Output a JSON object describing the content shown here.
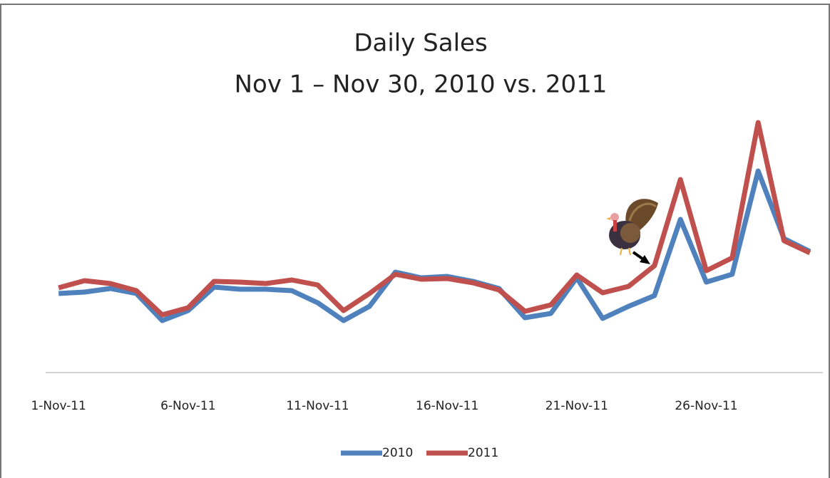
{
  "chart_data": {
    "type": "line",
    "title": "Daily Sales",
    "subtitle": "Nov 1 – Nov 30, 2010 vs. 2011",
    "categories": [
      "1-Nov-11",
      null,
      null,
      null,
      null,
      "6-Nov-11",
      null,
      null,
      null,
      null,
      "11-Nov-11",
      null,
      null,
      null,
      null,
      "16-Nov-11",
      null,
      null,
      null,
      null,
      "21-Nov-11",
      null,
      null,
      null,
      null,
      "26-Nov-11",
      null,
      null,
      null,
      null
    ],
    "series": [
      {
        "name": "2010",
        "color": "#4f81bd",
        "values": [
          111,
          113,
          118,
          111,
          73,
          87,
          120,
          117,
          117,
          115,
          98,
          73,
          93,
          141,
          133,
          135,
          128,
          118,
          77,
          83,
          133,
          76,
          93,
          108,
          215,
          127,
          138,
          283,
          188,
          170
        ]
      },
      {
        "name": "2011",
        "color": "#c0504d",
        "values": [
          119,
          129,
          125,
          115,
          81,
          91,
          128,
          127,
          125,
          130,
          123,
          87,
          111,
          138,
          131,
          132,
          126,
          116,
          86,
          95,
          137,
          112,
          121,
          150,
          271,
          143,
          161,
          351,
          185,
          168
        ]
      }
    ],
    "ylim": [
      0,
      360
    ],
    "legend": "bottom"
  }
}
